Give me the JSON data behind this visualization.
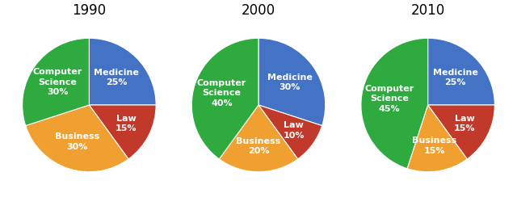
{
  "charts": [
    {
      "title": "1990",
      "values": [
        25,
        15,
        30,
        30
      ],
      "label_texts": [
        "Medicine\n25%",
        "Law\n15%",
        "Business\n30%",
        "Computer\nScience\n30%"
      ],
      "colors": [
        "#4472C4",
        "#C0392B",
        "#F0A030",
        "#2EAA3F"
      ],
      "startangle": 90
    },
    {
      "title": "2000",
      "values": [
        30,
        10,
        20,
        40
      ],
      "label_texts": [
        "Medicine\n30%",
        "Law\n10%",
        "Business\n20%",
        "Computer\nScience\n40%"
      ],
      "colors": [
        "#4472C4",
        "#C0392B",
        "#F0A030",
        "#2EAA3F"
      ],
      "startangle": 90
    },
    {
      "title": "2010",
      "values": [
        25,
        15,
        15,
        45
      ],
      "label_texts": [
        "Medicine\n25%",
        "Law\n15%",
        "Business\n15%",
        "Computer\nScience\n45%"
      ],
      "colors": [
        "#4472C4",
        "#C0392B",
        "#F0A030",
        "#2EAA3F"
      ],
      "startangle": 90
    }
  ],
  "background_color": "#FFFFFF",
  "title_fontsize": 12,
  "label_fontsize": 8.0,
  "label_color": "#FFFFFF",
  "label_radii": {
    "large": 0.58,
    "medium": 0.62,
    "small": 0.65
  }
}
